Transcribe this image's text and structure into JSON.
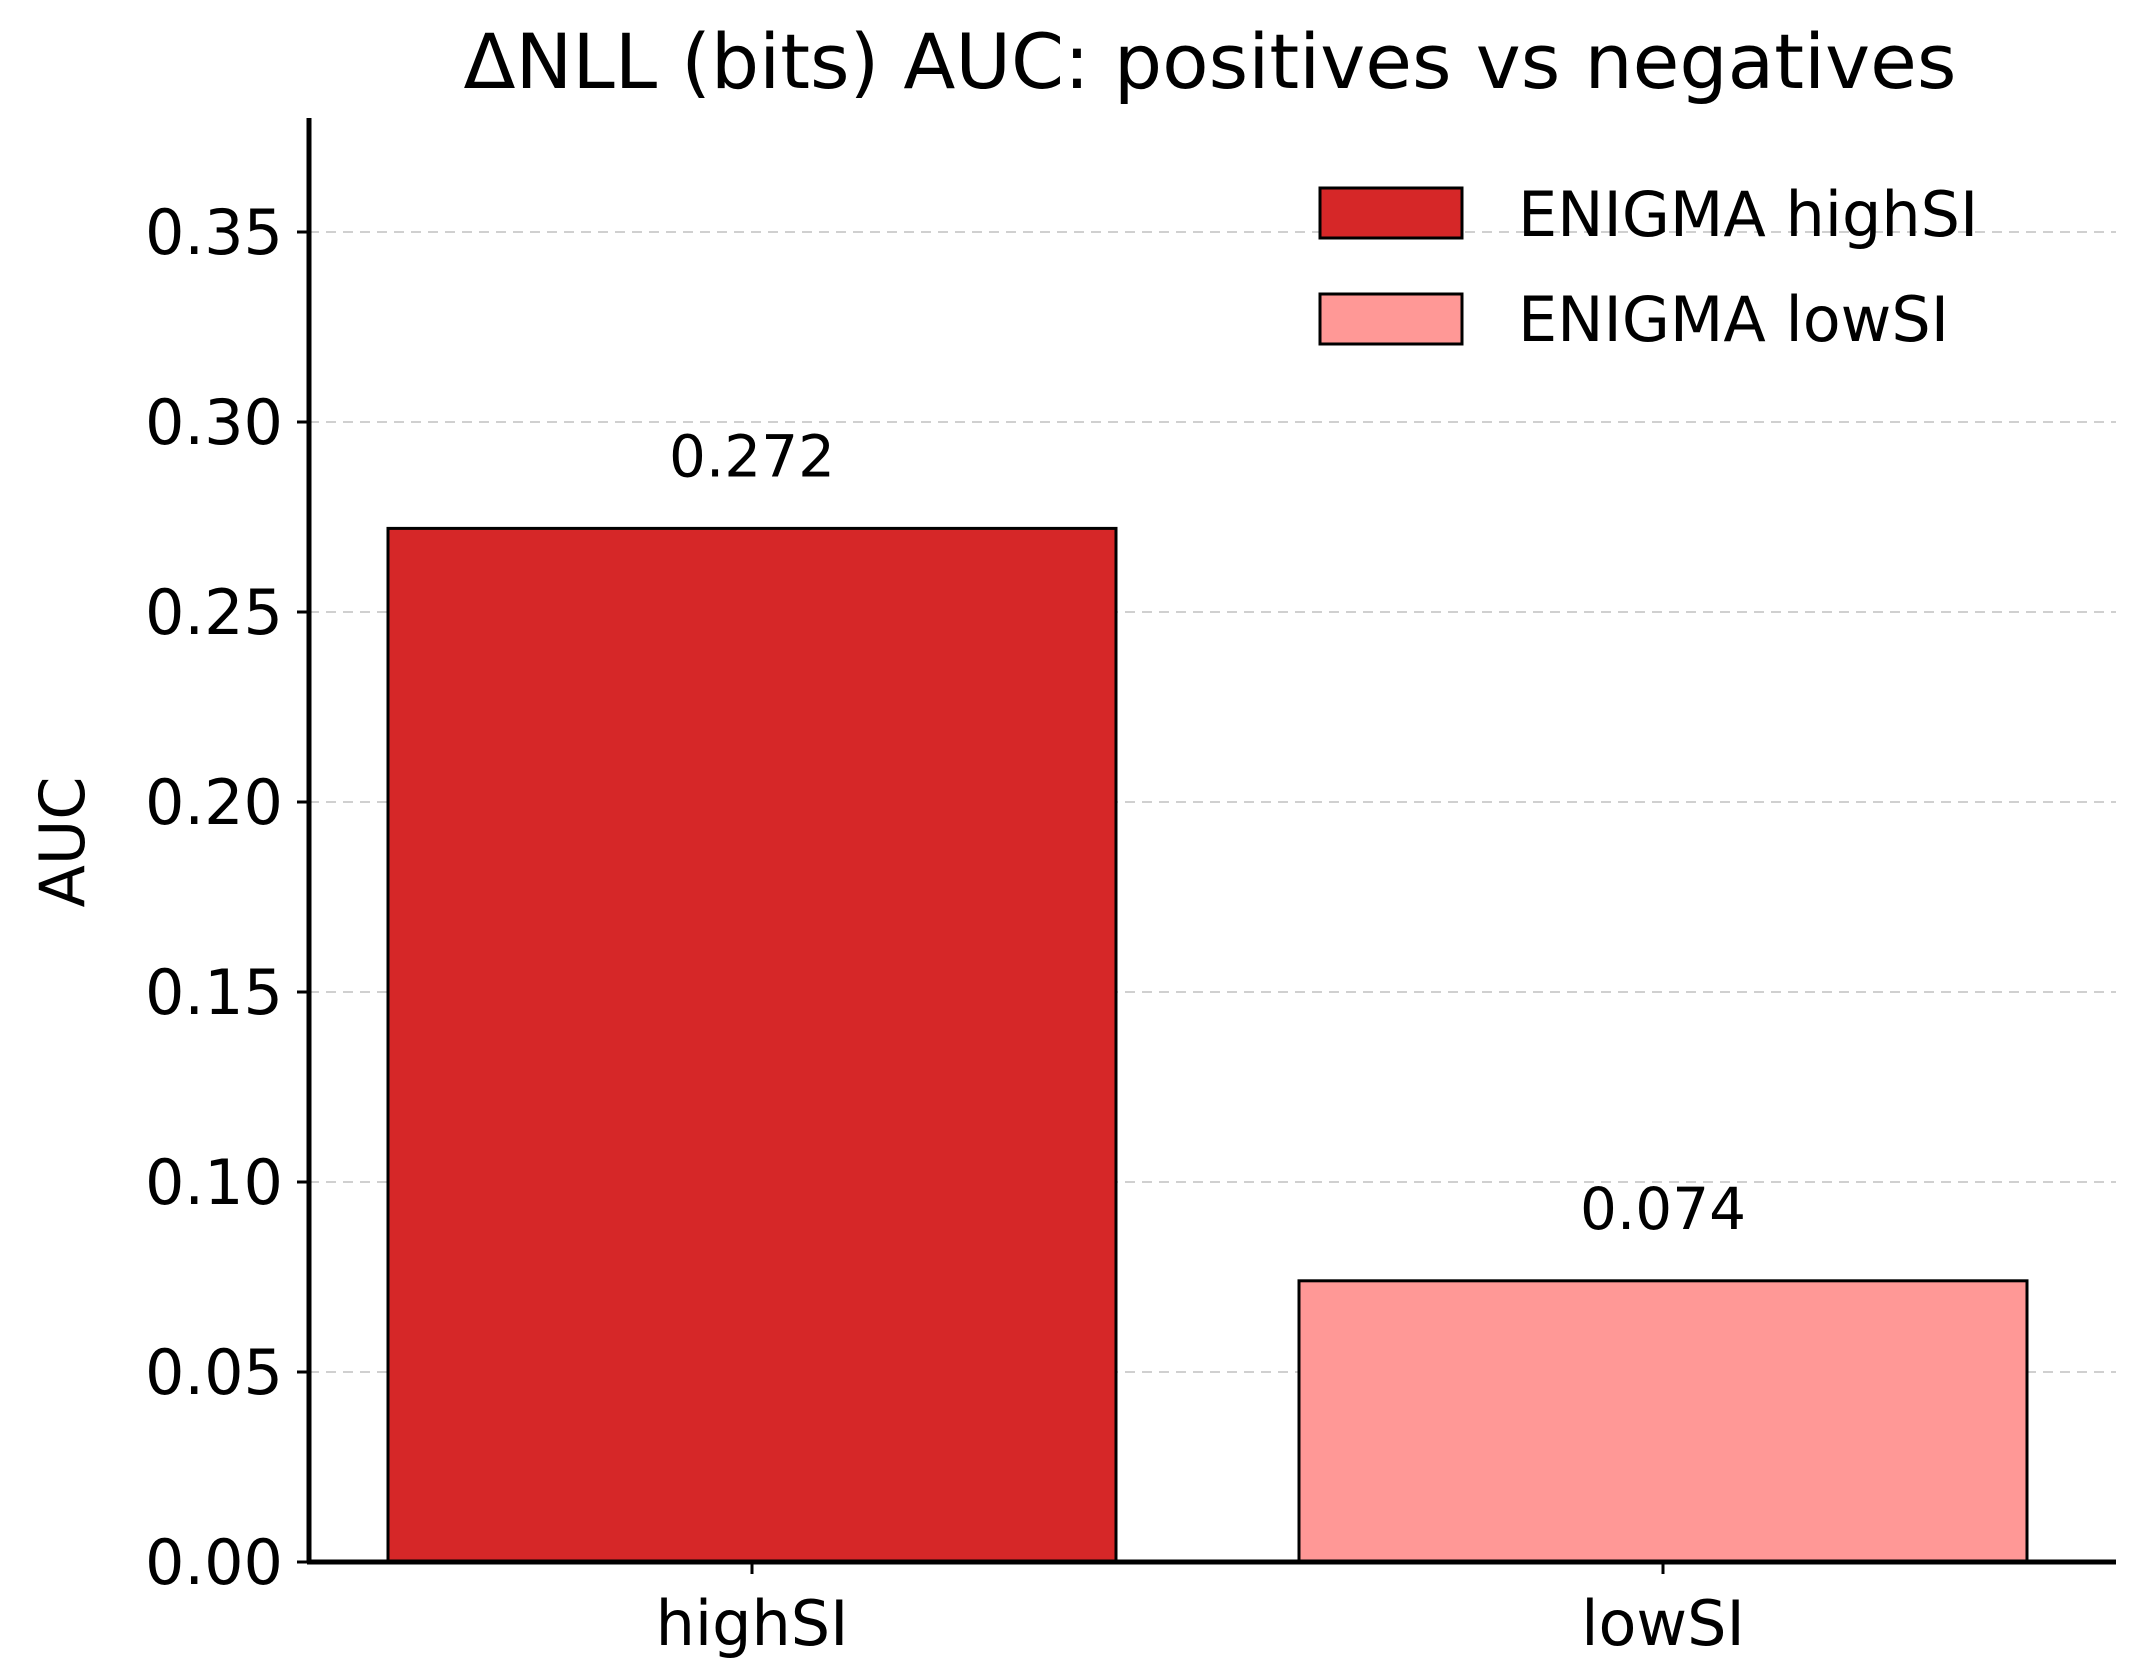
{
  "chart_data": {
    "type": "bar",
    "title": "ΔNLL (bits) AUC: positives vs negatives",
    "xlabel": "",
    "ylabel": "AUC",
    "categories": [
      "highSI",
      "lowSI"
    ],
    "values": [
      0.272,
      0.074
    ],
    "value_labels": [
      "0.272",
      "0.074"
    ],
    "series_names": [
      "ENIGMA highSI",
      "ENIGMA lowSI"
    ],
    "colors": [
      "#d62728",
      "#ff9896"
    ],
    "ylim": [
      0,
      0.38
    ],
    "yticks": [
      0.0,
      0.05,
      0.1,
      0.15,
      0.2,
      0.25,
      0.3,
      0.35
    ],
    "ytick_labels": [
      "0.00",
      "0.05",
      "0.10",
      "0.15",
      "0.20",
      "0.25",
      "0.30",
      "0.35"
    ],
    "grid": "y-dashed",
    "legend_position": "top-right"
  }
}
